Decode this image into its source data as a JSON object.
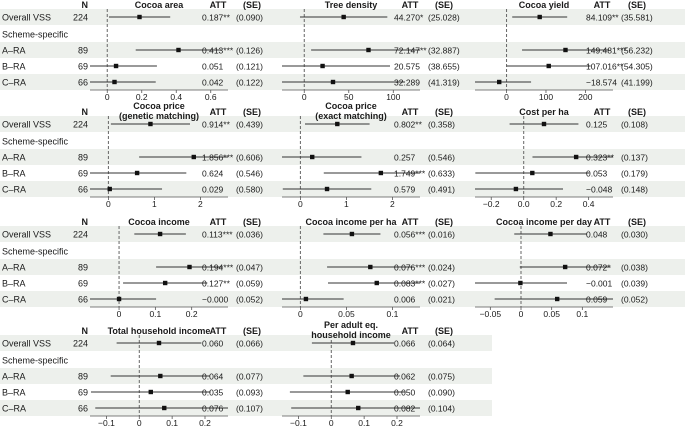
{
  "chart_data": {
    "type": "forest",
    "rows": [
      {
        "label": "Overall VSS",
        "n": "224",
        "shaded": true
      },
      {
        "label": "Scheme-specific",
        "n": "",
        "shaded": false
      },
      {
        "label": "A–RA",
        "n": "89",
        "shaded": true
      },
      {
        "label": "B–RA",
        "n": "69",
        "shaded": false
      },
      {
        "label": "C–RA",
        "n": "66",
        "shaded": true
      }
    ],
    "n_header": "N",
    "att_header": "ATT",
    "se_header": "(SE)",
    "panels": [
      {
        "title": [
          "Cocoa area"
        ],
        "xlim": [
          -0.1,
          0.7
        ],
        "ticks": [
          0,
          0.2,
          0.4,
          0.6
        ],
        "tick_labels": [
          "0",
          "0.2",
          "0.4",
          "0.6"
        ],
        "estimates": [
          {
            "row": 0,
            "est": 0.187,
            "lo": 0.01,
            "hi": 0.365,
            "att": "0.187**",
            "se": "(0.090)"
          },
          {
            "row": 2,
            "est": 0.413,
            "lo": 0.165,
            "hi": 0.66,
            "att": "0.413***",
            "se": "(0.126)"
          },
          {
            "row": 3,
            "est": 0.051,
            "lo": -0.186,
            "hi": 0.288,
            "att": "0.051",
            "se": "(0.121)"
          },
          {
            "row": 4,
            "est": 0.042,
            "lo": -0.197,
            "hi": 0.281,
            "att": "0.042",
            "se": "(0.122)"
          }
        ]
      },
      {
        "title": [
          "Tree density"
        ],
        "xlim": [
          -25,
          130
        ],
        "ticks": [
          0,
          50,
          100
        ],
        "tick_labels": [
          "0",
          "50",
          "100"
        ],
        "estimates": [
          {
            "row": 0,
            "est": 44.27,
            "lo": -4.8,
            "hi": 93.3,
            "att": "44.270*",
            "se": "(25.028)"
          },
          {
            "row": 2,
            "est": 72.147,
            "lo": 7.7,
            "hi": 136.6,
            "att": "72.147**",
            "se": "(32.887)"
          },
          {
            "row": 3,
            "est": 20.575,
            "lo": -55.2,
            "hi": 96.3,
            "att": "20.575",
            "se": "(38.655)"
          },
          {
            "row": 4,
            "est": 32.289,
            "lo": -48.7,
            "hi": 113.2,
            "att": "32.289",
            "se": "(41.319)"
          }
        ]
      },
      {
        "title": [
          "Cocoa yield"
        ],
        "xlim": [
          -80,
          270
        ],
        "ticks": [
          0,
          100,
          200
        ],
        "tick_labels": [
          "0",
          "100",
          "200"
        ],
        "estimates": [
          {
            "row": 0,
            "est": 84.109,
            "lo": 14.4,
            "hi": 153.8,
            "att": "84.109**",
            "se": "(35.581)"
          },
          {
            "row": 2,
            "est": 149.481,
            "lo": 39.3,
            "hi": 259.7,
            "att": "149.481***",
            "se": "(56.232)"
          },
          {
            "row": 3,
            "est": 107.016,
            "lo": 0.6,
            "hi": 213.4,
            "att": "107.016**",
            "se": "(54.305)"
          },
          {
            "row": 4,
            "est": -18.574,
            "lo": -99.3,
            "hi": 62.2,
            "att": "−18.574",
            "se": "(41.199)"
          }
        ]
      },
      {
        "title": [
          "Cocoa price",
          "(genetic matching)"
        ],
        "xlim": [
          -0.4,
          2.6
        ],
        "ticks": [
          0,
          1,
          2
        ],
        "tick_labels": [
          "0",
          "1",
          "2"
        ],
        "estimates": [
          {
            "row": 0,
            "est": 0.914,
            "lo": 0.054,
            "hi": 1.774,
            "att": "0.914**",
            "se": "(0.439)"
          },
          {
            "row": 2,
            "est": 1.856,
            "lo": 0.668,
            "hi": 3.044,
            "att": "1.856***",
            "se": "(0.606)"
          },
          {
            "row": 3,
            "est": 0.624,
            "lo": -0.446,
            "hi": 1.694,
            "att": "0.624",
            "se": "(0.546)"
          },
          {
            "row": 4,
            "est": 0.029,
            "lo": -1.108,
            "hi": 1.166,
            "att": "0.029",
            "se": "(0.580)"
          }
        ]
      },
      {
        "title": [
          "Cocoa price",
          "(exact matching)"
        ],
        "xlim": [
          -0.4,
          2.6
        ],
        "ticks": [
          0,
          1,
          2
        ],
        "tick_labels": [
          "0",
          "1",
          "2"
        ],
        "estimates": [
          {
            "row": 0,
            "est": 0.802,
            "lo": 0.1,
            "hi": 1.504,
            "att": "0.802**",
            "se": "(0.358)"
          },
          {
            "row": 2,
            "est": 0.257,
            "lo": -0.813,
            "hi": 1.327,
            "att": "0.257",
            "se": "(0.546)"
          },
          {
            "row": 3,
            "est": 1.749,
            "lo": 0.508,
            "hi": 2.99,
            "att": "1.749***",
            "se": "(0.633)"
          },
          {
            "row": 4,
            "est": 0.579,
            "lo": -0.383,
            "hi": 1.541,
            "att": "0.579",
            "se": "(0.491)"
          }
        ]
      },
      {
        "title": [
          "Cost per ha"
        ],
        "xlim": [
          -0.3,
          0.55
        ],
        "ticks": [
          -0.2,
          0,
          0.2,
          0.4
        ],
        "tick_labels": [
          "−0.2",
          "0.0",
          "0.2",
          "0.4"
        ],
        "estimates": [
          {
            "row": 0,
            "est": 0.125,
            "lo": -0.087,
            "hi": 0.337,
            "att": "0.125",
            "se": "(0.108)"
          },
          {
            "row": 2,
            "est": 0.323,
            "lo": 0.054,
            "hi": 0.592,
            "att": "0.323**",
            "se": "(0.137)"
          },
          {
            "row": 3,
            "est": 0.053,
            "lo": -0.298,
            "hi": 0.404,
            "att": "0.053",
            "se": "(0.179)"
          },
          {
            "row": 4,
            "est": -0.048,
            "lo": -0.338,
            "hi": 0.242,
            "att": "−0.048",
            "se": "(0.148)"
          }
        ]
      },
      {
        "title": [
          "Cocoa income"
        ],
        "xlim": [
          -0.08,
          0.3
        ],
        "ticks": [
          0,
          0.1,
          0.2
        ],
        "tick_labels": [
          "0",
          "0.1",
          "0.2"
        ],
        "estimates": [
          {
            "row": 0,
            "est": 0.113,
            "lo": 0.042,
            "hi": 0.184,
            "att": "0.113***",
            "se": "(0.036)"
          },
          {
            "row": 2,
            "est": 0.194,
            "lo": 0.102,
            "hi": 0.286,
            "att": "0.194***",
            "se": "(0.047)"
          },
          {
            "row": 3,
            "est": 0.127,
            "lo": 0.011,
            "hi": 0.243,
            "att": "0.127**",
            "se": "(0.059)"
          },
          {
            "row": 4,
            "est": -0.0,
            "lo": -0.102,
            "hi": 0.102,
            "att": "−0.000",
            "se": "(0.052)"
          }
        ]
      },
      {
        "title": [
          "Cocoa income per ha"
        ],
        "xlim": [
          -0.02,
          0.13
        ],
        "ticks": [
          0,
          0.05,
          0.1
        ],
        "tick_labels": [
          "0",
          "0.05",
          "0.1"
        ],
        "estimates": [
          {
            "row": 0,
            "est": 0.056,
            "lo": 0.025,
            "hi": 0.087,
            "att": "0.056***",
            "se": "(0.016)"
          },
          {
            "row": 2,
            "est": 0.076,
            "lo": 0.029,
            "hi": 0.123,
            "att": "0.076***",
            "se": "(0.024)"
          },
          {
            "row": 3,
            "est": 0.083,
            "lo": 0.03,
            "hi": 0.136,
            "att": "0.083***",
            "se": "(0.027)"
          },
          {
            "row": 4,
            "est": 0.006,
            "lo": -0.035,
            "hi": 0.047,
            "att": "0.006",
            "se": "(0.021)"
          }
        ]
      },
      {
        "title": [
          "Cocoa income per day"
        ],
        "xlim": [
          -0.075,
          0.15
        ],
        "ticks": [
          -0.05,
          0,
          0.05,
          0.1
        ],
        "tick_labels": [
          "−0.05",
          "0",
          "0.05",
          "0.1"
        ],
        "estimates": [
          {
            "row": 0,
            "est": 0.048,
            "lo": -0.011,
            "hi": 0.107,
            "att": "0.048",
            "se": "(0.030)"
          },
          {
            "row": 2,
            "est": 0.072,
            "lo": -0.002,
            "hi": 0.146,
            "att": "0.072*",
            "se": "(0.038)"
          },
          {
            "row": 3,
            "est": -0.001,
            "lo": -0.077,
            "hi": 0.075,
            "att": "−0.001",
            "se": "(0.039)"
          },
          {
            "row": 4,
            "est": 0.059,
            "lo": -0.043,
            "hi": 0.161,
            "att": "0.059",
            "se": "(0.052)"
          }
        ]
      },
      {
        "title": [
          "Total household income"
        ],
        "xlim": [
          -0.15,
          0.27
        ],
        "ticks": [
          -0.1,
          0,
          0.1,
          0.2
        ],
        "tick_labels": [
          "−0.1",
          "0",
          "0.1",
          "0.2"
        ],
        "estimates": [
          {
            "row": 0,
            "est": 0.06,
            "lo": -0.069,
            "hi": 0.189,
            "att": "0.060",
            "se": "(0.066)"
          },
          {
            "row": 2,
            "est": 0.064,
            "lo": -0.087,
            "hi": 0.215,
            "att": "0.064",
            "se": "(0.077)"
          },
          {
            "row": 3,
            "est": 0.035,
            "lo": -0.147,
            "hi": 0.217,
            "att": "0.035",
            "se": "(0.093)"
          },
          {
            "row": 4,
            "est": 0.076,
            "lo": -0.134,
            "hi": 0.286,
            "att": "0.076",
            "se": "(0.107)"
          }
        ]
      },
      {
        "title": [
          "Per adult eq.",
          "household income"
        ],
        "xlim": [
          -0.15,
          0.27
        ],
        "ticks": [
          -0.1,
          0,
          0.1,
          0.2
        ],
        "tick_labels": [
          "−0.1",
          "0",
          "0.1",
          "0.2"
        ],
        "estimates": [
          {
            "row": 0,
            "est": 0.066,
            "lo": -0.059,
            "hi": 0.191,
            "att": "0.066",
            "se": "(0.064)"
          },
          {
            "row": 2,
            "est": 0.062,
            "lo": -0.085,
            "hi": 0.209,
            "att": "0.062",
            "se": "(0.075)"
          },
          {
            "row": 3,
            "est": 0.05,
            "lo": -0.126,
            "hi": 0.226,
            "att": "0.050",
            "se": "(0.090)"
          },
          {
            "row": 4,
            "est": 0.082,
            "lo": -0.122,
            "hi": 0.286,
            "att": "0.082",
            "se": "(0.104)"
          }
        ]
      }
    ]
  },
  "colors": {
    "shade": "#edf0ec",
    "text": "#1a1a1a",
    "axis": "#555555",
    "ci": "#333333",
    "point": "#111111",
    "zero": "#666666"
  }
}
